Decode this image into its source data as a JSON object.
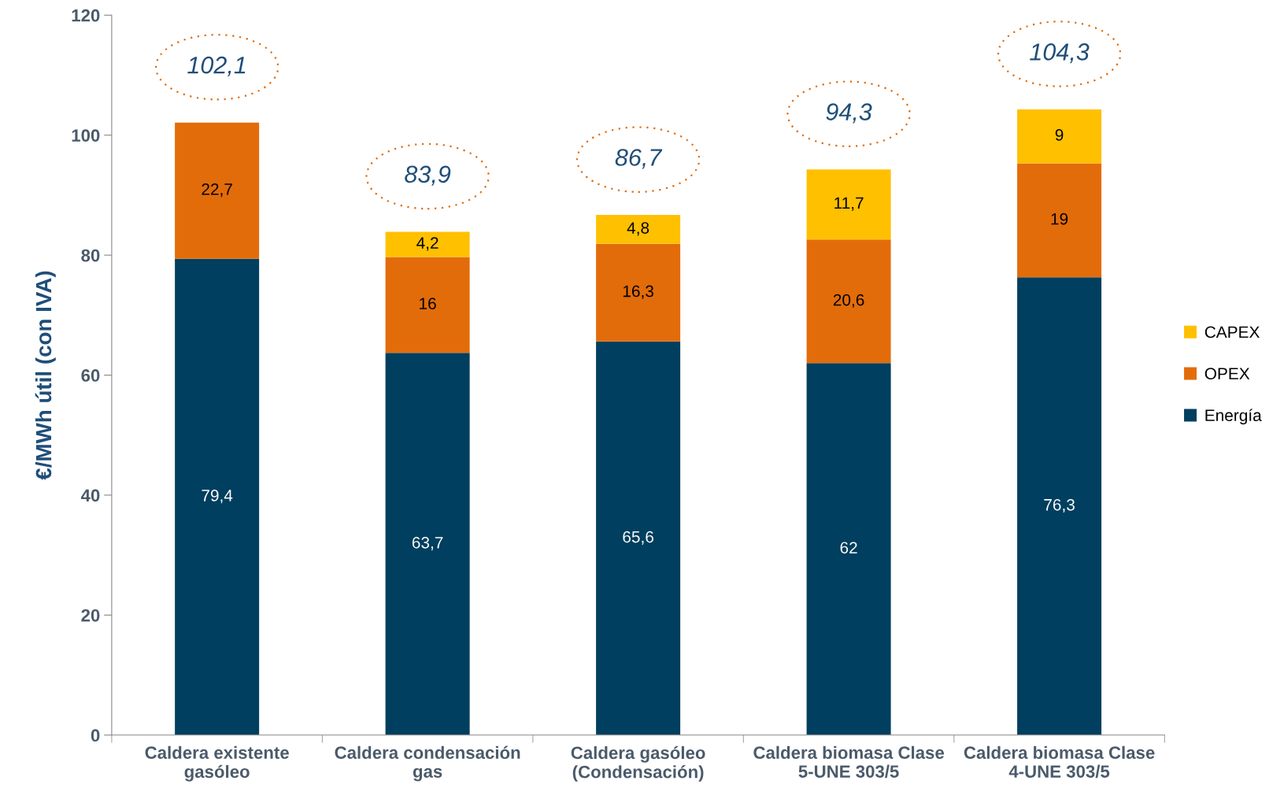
{
  "chart_data": {
    "type": "bar",
    "stacked": true,
    "ylabel": "€/MWh útil (con IVA)",
    "categories": [
      "Caldera existente\ngasóleo",
      "Caldera condensación\ngas",
      "Caldera gasóleo\n(Condensación)",
      "Caldera biomasa Clase\n5-UNE 303/5",
      "Caldera biomasa Clase\n4-UNE 303/5"
    ],
    "series": [
      {
        "name": "Energía",
        "color": "#003f5f",
        "values": [
          79.4,
          63.7,
          65.6,
          62,
          76.3
        ],
        "value_labels": [
          "79,4",
          "63,7",
          "65,6",
          "62",
          "76,3"
        ]
      },
      {
        "name": "OPEX",
        "color": "#e36c0a",
        "values": [
          22.7,
          16,
          16.3,
          20.6,
          19
        ],
        "value_labels": [
          "22,7",
          "16",
          "16,3",
          "20,6",
          "19"
        ]
      },
      {
        "name": "CAPEX",
        "color": "#ffc000",
        "values": [
          null,
          4.2,
          4.8,
          11.7,
          9
        ],
        "value_labels": [
          null,
          "4,2",
          "4,8",
          "11,7",
          "9"
        ]
      }
    ],
    "totals": [
      "102,1",
      "83,9",
      "86,7",
      "94,3",
      "104,3"
    ],
    "ylim": [
      0,
      120
    ],
    "yticks": [
      0,
      20,
      40,
      60,
      80,
      100,
      120
    ],
    "grid": false,
    "legend": "right"
  }
}
